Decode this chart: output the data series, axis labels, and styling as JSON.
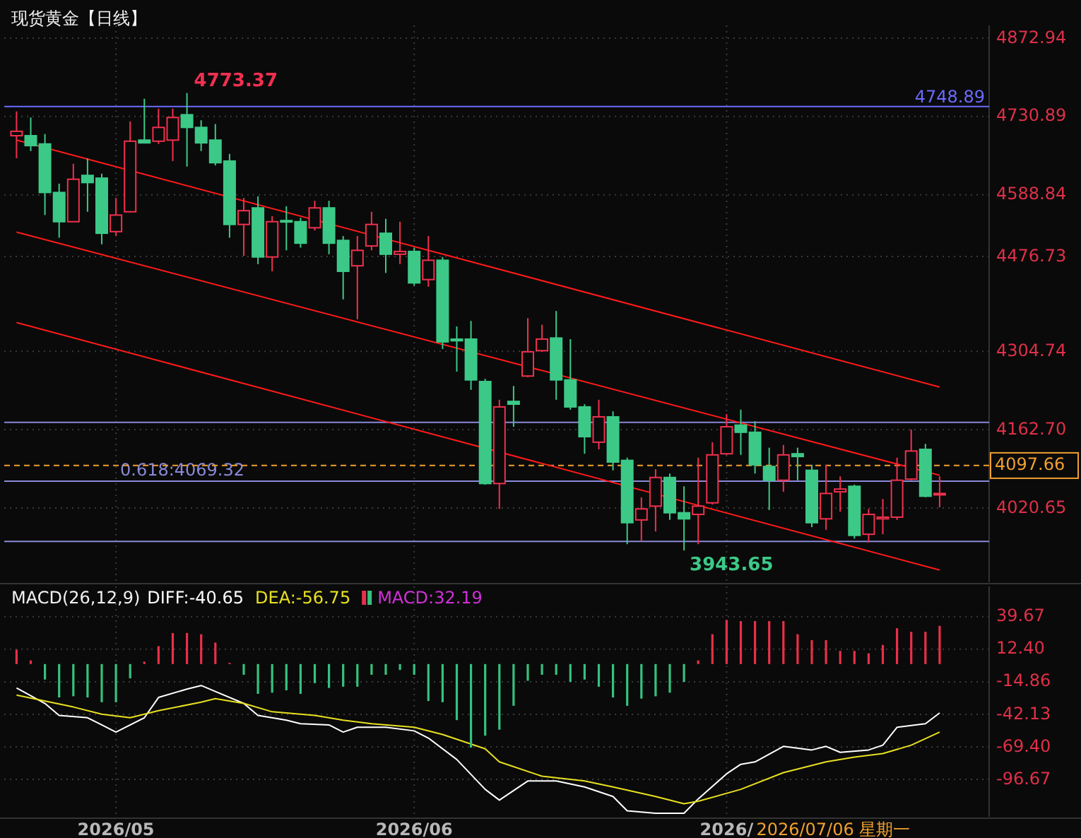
{
  "chart_data": [
    {
      "type": "candlestick",
      "title": "现货黄金【日线】",
      "tick_labels": "y",
      "grid": true,
      "categories": [
        null,
        null,
        null,
        null,
        null,
        null,
        null,
        null,
        null,
        null,
        null,
        null,
        null,
        null,
        null,
        null,
        null,
        null,
        null,
        null,
        null,
        null,
        null,
        null,
        null,
        null,
        null,
        null,
        null,
        null,
        null,
        null,
        null,
        null,
        null,
        null,
        null,
        null,
        null,
        null,
        null,
        null,
        null,
        null,
        null,
        null,
        null,
        null,
        null,
        null,
        null,
        null,
        null,
        null,
        null,
        null,
        null,
        null,
        null,
        null,
        null,
        null,
        null,
        null,
        null,
        null
      ],
      "ohlc": [
        [
          4696,
          4740,
          4655,
          4704
        ],
        [
          4696,
          4729,
          4668,
          4678
        ],
        [
          4681,
          4699,
          4552,
          4593
        ],
        [
          4593,
          4609,
          4511,
          4540
        ],
        [
          4540,
          4645,
          4540,
          4617
        ],
        [
          4624,
          4655,
          4558,
          4611
        ],
        [
          4619,
          4627,
          4499,
          4519
        ],
        [
          4522,
          4583,
          4514,
          4552
        ],
        [
          4558,
          4722,
          4558,
          4686
        ],
        [
          4688,
          4763,
          4683,
          4683
        ],
        [
          4686,
          4745,
          4681,
          4711
        ],
        [
          4688,
          4745,
          4650,
          4729
        ],
        [
          4734,
          4773.37,
          4640,
          4711
        ],
        [
          4711,
          4724,
          4668,
          4683
        ],
        [
          4688,
          4717,
          4642,
          4647
        ],
        [
          4650,
          4663,
          4511,
          4535
        ],
        [
          4535,
          4583,
          4478,
          4560
        ],
        [
          4565,
          4586,
          4463,
          4476
        ],
        [
          4476,
          4550,
          4450,
          4540
        ],
        [
          4542,
          4568,
          4488,
          4540
        ],
        [
          4540,
          4547,
          4493,
          4501
        ],
        [
          4529,
          4578,
          4524,
          4565
        ],
        [
          4565,
          4578,
          4481,
          4501
        ],
        [
          4506,
          4514,
          4399,
          4450
        ],
        [
          4460,
          4514,
          4363,
          4488
        ],
        [
          4496,
          4558,
          4488,
          4535
        ],
        [
          4519,
          4545,
          4447,
          4481
        ],
        [
          4481,
          4540,
          4463,
          4486
        ],
        [
          4486,
          4493,
          4424,
          4429
        ],
        [
          4435,
          4514,
          4422,
          4470
        ],
        [
          4470,
          4476,
          4309,
          4322
        ],
        [
          4327,
          4350,
          4268,
          4324
        ],
        [
          4327,
          4360,
          4235,
          4253
        ],
        [
          4250,
          4255,
          4063,
          4065
        ],
        [
          4065,
          4217,
          4019,
          4204
        ],
        [
          4214,
          4242,
          4168,
          4209
        ],
        [
          4260,
          4365,
          4258,
          4304
        ],
        [
          4306,
          4353,
          4304,
          4327
        ],
        [
          4329,
          4378,
          4217,
          4253
        ],
        [
          4253,
          4327,
          4199,
          4204
        ],
        [
          4204,
          4209,
          4119,
          4150
        ],
        [
          4140,
          4217,
          4127,
          4186
        ],
        [
          4186,
          4196,
          4089,
          4104
        ],
        [
          4107,
          4112,
          3955,
          3994
        ],
        [
          3999,
          4040,
          3960,
          4019
        ],
        [
          4024,
          4091,
          3978,
          4076
        ],
        [
          4076,
          4083,
          3999,
          4012
        ],
        [
          4012,
          4060,
          3943.65,
          4001
        ],
        [
          4009,
          4112,
          3955,
          4024
        ],
        [
          4030,
          4140,
          4027,
          4117
        ],
        [
          4119,
          4191,
          4117,
          4168
        ],
        [
          4171,
          4199,
          4117,
          4158
        ],
        [
          4158,
          4178,
          4083,
          4099
        ],
        [
          4096,
          4130,
          4017,
          4071
        ],
        [
          4071,
          4135,
          4050,
          4117
        ],
        [
          4119,
          4130,
          4071,
          4114
        ],
        [
          4089,
          4099,
          3986,
          3994
        ],
        [
          4001,
          4099,
          3981,
          4047
        ],
        [
          4050,
          4078,
          4014,
          4055
        ],
        [
          4060,
          4063,
          3965,
          3971
        ],
        [
          3973,
          4019,
          3958,
          4009
        ],
        [
          4001,
          4037,
          3973,
          4004
        ],
        [
          4004,
          4112,
          3999,
          4071
        ],
        [
          4073,
          4163,
          4071,
          4124
        ],
        [
          4127,
          4137,
          4040,
          4042
        ],
        [
          4045,
          4078,
          4022,
          4047
        ]
      ],
      "colors": [
        "#f0304d",
        "#3cc987",
        "#3cc987",
        "#3cc987",
        "#f0304d",
        "#3cc987",
        "#3cc987",
        "#f0304d",
        "#f0304d",
        "#3cc987",
        "#f0304d",
        "#f0304d",
        "#3cc987",
        "#3cc987",
        "#3cc987",
        "#3cc987",
        "#f0304d",
        "#3cc987",
        "#f0304d",
        "#3cc987",
        "#3cc987",
        "#f0304d",
        "#3cc987",
        "#3cc987",
        "#f0304d",
        "#f0304d",
        "#3cc987",
        "#f0304d",
        "#3cc987",
        "#f0304d",
        "#3cc987",
        "#3cc987",
        "#3cc987",
        "#3cc987",
        "#f0304d",
        "#3cc987",
        "#f0304d",
        "#f0304d",
        "#3cc987",
        "#3cc987",
        "#3cc987",
        "#f0304d",
        "#3cc987",
        "#3cc987",
        "#f0304d",
        "#f0304d",
        "#3cc987",
        "#3cc987",
        "#f0304d",
        "#f0304d",
        "#f0304d",
        "#3cc987",
        "#3cc987",
        "#3cc987",
        "#f0304d",
        "#3cc987",
        "#3cc987",
        "#f0304d",
        "#f0304d",
        "#3cc987",
        "#f0304d",
        "#f0304d",
        "#f0304d",
        "#f0304d",
        "#3cc987",
        "#f0304d"
      ],
      "series": [
        {
          "type": "line",
          "color": "#ff1a1a",
          "values": [
            4688,
            null,
            null,
            null,
            null,
            null,
            null,
            null,
            null,
            null,
            null,
            null,
            null,
            null,
            null,
            null,
            null,
            null,
            null,
            null,
            null,
            null,
            null,
            null,
            null,
            null,
            null,
            null,
            null,
            null,
            null,
            null,
            null,
            null,
            null,
            null,
            null,
            null,
            null,
            null,
            null,
            null,
            null,
            null,
            null,
            null,
            null,
            null,
            null,
            null,
            null,
            null,
            null,
            null,
            null,
            null,
            null,
            null,
            null,
            null,
            null,
            null,
            null,
            null,
            null,
            4240
          ]
        },
        {
          "type": "line",
          "color": "#ff1a1a",
          "values": [
            4521,
            null,
            null,
            null,
            null,
            null,
            null,
            null,
            null,
            null,
            null,
            null,
            null,
            null,
            null,
            null,
            null,
            null,
            null,
            null,
            null,
            null,
            null,
            null,
            null,
            null,
            null,
            null,
            null,
            null,
            null,
            null,
            null,
            null,
            null,
            null,
            null,
            null,
            null,
            null,
            null,
            null,
            null,
            null,
            null,
            null,
            null,
            null,
            null,
            null,
            null,
            null,
            null,
            null,
            null,
            null,
            null,
            null,
            null,
            null,
            null,
            null,
            null,
            null,
            null,
            4080
          ]
        },
        {
          "type": "line",
          "color": "#ff1a1a",
          "values": [
            4357,
            null,
            null,
            null,
            null,
            null,
            null,
            null,
            null,
            null,
            null,
            null,
            null,
            null,
            null,
            null,
            null,
            null,
            null,
            null,
            null,
            null,
            null,
            null,
            null,
            null,
            null,
            null,
            null,
            null,
            null,
            null,
            null,
            null,
            null,
            null,
            null,
            null,
            null,
            null,
            null,
            null,
            null,
            null,
            null,
            null,
            null,
            null,
            null,
            null,
            null,
            null,
            null,
            null,
            null,
            null,
            null,
            null,
            null,
            null,
            null,
            null,
            null,
            null,
            null,
            3908
          ]
        }
      ],
      "ylim": [
        3886,
        4896
      ],
      "yticks": [
        4872.94,
        4730.89,
        4588.84,
        4476.73,
        4304.74,
        {
          "value": 4162.7,
          "label": "4162.70"
        },
        4020.65
      ],
      "ref_lines": [
        {
          "axis": "y",
          "value": 4748.89,
          "label": "4748.89",
          "color": "#6b6bff"
        },
        {
          "axis": "y",
          "value": 4176,
          "color": "#8a8ad8"
        },
        {
          "axis": "y",
          "value": 4069.32,
          "label": "0.618:4069.32",
          "color": "#8a8ad8"
        },
        {
          "axis": "y",
          "value": 3960,
          "color": "#8a8ad8"
        },
        {
          "axis": "y",
          "value": 4097.66,
          "label": "4097.66",
          "color": "#f0a030",
          "line_style": "dashed"
        }
      ],
      "annotations": [
        "4773.37",
        "3943.65"
      ]
    },
    {
      "type": "bar",
      "title": "MACD(26,12,9)",
      "legend": "top left",
      "grid": true,
      "categories": [
        null,
        null,
        null,
        null,
        null,
        null,
        null,
        "2026/05",
        null,
        null,
        null,
        null,
        null,
        null,
        null,
        null,
        null,
        null,
        null,
        null,
        null,
        null,
        null,
        null,
        null,
        null,
        null,
        null,
        "2026/06",
        null,
        null,
        null,
        null,
        null,
        null,
        null,
        null,
        null,
        null,
        null,
        null,
        null,
        null,
        null,
        null,
        null,
        null,
        null,
        null,
        null,
        "2026/",
        null,
        null,
        null,
        null,
        null,
        null,
        null,
        null,
        null,
        null,
        null,
        null,
        null,
        null,
        null
      ],
      "series": [
        {
          "name": "DIFF:-40.65",
          "type": "line",
          "color": "#ffffff",
          "values": [
            -20,
            null,
            -33,
            -43,
            null,
            -45,
            -51,
            -57,
            null,
            -45,
            -28,
            null,
            -21,
            -18,
            -23,
            null,
            -33,
            -43,
            null,
            -47,
            -50,
            null,
            -51,
            -57,
            -53,
            null,
            -53,
            null,
            -56,
            -62,
            null,
            -80,
            null,
            -105,
            -114,
            null,
            -98,
            null,
            -98,
            null,
            -103,
            null,
            -111,
            -123,
            null,
            -125,
            null,
            -125,
            -113,
            null,
            -92,
            -84,
            -82,
            null,
            -69,
            null,
            -72,
            -69,
            -74,
            null,
            -72,
            -68,
            -53,
            null,
            -50,
            -41
          ]
        },
        {
          "name": "DEA:-56.75",
          "type": "line",
          "color": "#e8e020",
          "values": [
            -26,
            null,
            null,
            null,
            -36,
            null,
            -42,
            null,
            -45,
            null,
            -39,
            null,
            null,
            -32,
            -29,
            null,
            -33,
            null,
            -40,
            null,
            null,
            -43,
            null,
            -47,
            null,
            -50,
            null,
            null,
            -53,
            null,
            -59,
            null,
            null,
            -71,
            -82,
            null,
            null,
            -94,
            null,
            null,
            -98,
            null,
            -103,
            null,
            null,
            -111,
            null,
            -117,
            -115,
            null,
            null,
            -105,
            null,
            null,
            -91,
            null,
            null,
            -82,
            null,
            -78,
            null,
            -75,
            null,
            -68,
            null,
            -57
          ]
        },
        {
          "name": "MACD:32.19",
          "type": "bar",
          "color": "#d030d8",
          "values": [
            12,
            3,
            -13,
            -28,
            -27,
            -28,
            -32,
            -32,
            -12,
            2,
            15,
            26,
            26,
            25,
            18,
            1,
            -9,
            -25,
            -24,
            -22,
            -25,
            -16,
            -20,
            -19,
            -19,
            -9,
            -9,
            -5,
            -9,
            -31,
            -32,
            -47,
            -70,
            -60,
            -55,
            -35,
            -14,
            -9,
            -9,
            -15,
            -13,
            -19,
            -28,
            -35,
            -29,
            -27,
            -24,
            -15,
            3,
            25,
            37,
            36,
            36,
            36,
            36,
            25,
            20,
            20,
            11,
            11,
            9,
            16,
            30,
            27,
            27,
            32
          ],
          "colors": [
            "#e8304a",
            "#e8304a",
            "#35c27f",
            "#35c27f",
            "#35c27f",
            "#35c27f",
            "#35c27f",
            "#35c27f",
            "#35c27f",
            "#e8304a",
            "#e8304a",
            "#e8304a",
            "#e8304a",
            "#e8304a",
            "#e8304a",
            "#e8304a",
            "#35c27f",
            "#35c27f",
            "#35c27f",
            "#35c27f",
            "#35c27f",
            "#35c27f",
            "#35c27f",
            "#35c27f",
            "#35c27f",
            "#35c27f",
            "#35c27f",
            "#35c27f",
            "#35c27f",
            "#35c27f",
            "#35c27f",
            "#35c27f",
            "#35c27f",
            "#35c27f",
            "#35c27f",
            "#35c27f",
            "#35c27f",
            "#35c27f",
            "#35c27f",
            "#35c27f",
            "#35c27f",
            "#35c27f",
            "#35c27f",
            "#35c27f",
            "#35c27f",
            "#35c27f",
            "#35c27f",
            "#35c27f",
            "#e8304a",
            "#e8304a",
            "#e8304a",
            "#e8304a",
            "#e8304a",
            "#e8304a",
            "#e8304a",
            "#e8304a",
            "#e8304a",
            "#e8304a",
            "#e8304a",
            "#e8304a",
            "#e8304a",
            "#e8304a",
            "#e8304a",
            "#e8304a",
            "#e8304a",
            "#e8304a"
          ]
        }
      ],
      "ylim": [
        -128,
        65
      ],
      "yticks": [
        39.67,
        {
          "value": 12.4,
          "label": "12.40"
        },
        -14.86,
        -42.13,
        {
          "value": -69.4,
          "label": "-69.40"
        },
        -96.67
      ],
      "annotations": [
        "2026/07/06 星期一"
      ]
    }
  ]
}
